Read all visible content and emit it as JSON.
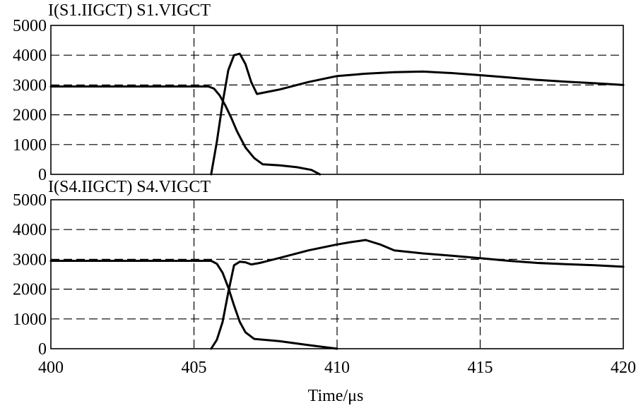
{
  "chart_data": [
    {
      "type": "line",
      "title": "I(S1.IIGCT)   S1.VIGCT",
      "xlim": [
        400,
        420
      ],
      "ylim": [
        0,
        5000
      ],
      "x_ticks": [
        400,
        405,
        410,
        415,
        420
      ],
      "y_ticks": [
        0,
        1000,
        2000,
        3000,
        4000,
        5000
      ],
      "grid": true,
      "series": [
        {
          "name": "I(S1.IIGCT)",
          "x": [
            400,
            405.5,
            405.7,
            405.9,
            406.1,
            406.3,
            406.5,
            406.8,
            407.1,
            407.4,
            408,
            408.6,
            409.1,
            409.4
          ],
          "y": [
            2950,
            2950,
            2880,
            2650,
            2300,
            1900,
            1450,
            900,
            550,
            340,
            300,
            240,
            150,
            0
          ]
        },
        {
          "name": "S1.VIGCT",
          "x": [
            405.6,
            405.8,
            406.0,
            406.2,
            406.4,
            406.6,
            406.8,
            407.0,
            407.2,
            408,
            409,
            410,
            411,
            412,
            413,
            414,
            415,
            416,
            417,
            418,
            419,
            420
          ],
          "y": [
            0,
            1100,
            2400,
            3500,
            4000,
            4050,
            3700,
            3100,
            2700,
            2850,
            3100,
            3300,
            3380,
            3430,
            3450,
            3400,
            3330,
            3250,
            3170,
            3110,
            3060,
            3000
          ]
        }
      ]
    },
    {
      "type": "line",
      "title": "I(S4.IIGCT)   S4.VIGCT",
      "xlabel": "Time/μs",
      "xlim": [
        400,
        420
      ],
      "ylim": [
        0,
        5000
      ],
      "x_ticks": [
        400,
        405,
        410,
        415,
        420
      ],
      "y_ticks": [
        0,
        1000,
        2000,
        3000,
        4000,
        5000
      ],
      "grid": true,
      "series": [
        {
          "name": "I(S4.IIGCT)",
          "x": [
            400,
            405.6,
            405.8,
            406.0,
            406.2,
            406.4,
            406.6,
            406.8,
            407.1,
            408,
            409,
            410
          ],
          "y": [
            2950,
            2950,
            2850,
            2550,
            2050,
            1450,
            900,
            550,
            330,
            250,
            120,
            0
          ]
        },
        {
          "name": "S4.VIGCT",
          "x": [
            405.6,
            405.8,
            406.0,
            406.2,
            406.4,
            406.6,
            406.8,
            407.0,
            407.3,
            408,
            409,
            410,
            410.5,
            411,
            411.5,
            412,
            413,
            414,
            415,
            416,
            417,
            418,
            419,
            420
          ],
          "y": [
            0,
            300,
            900,
            1900,
            2800,
            2920,
            2900,
            2830,
            2880,
            3050,
            3300,
            3500,
            3580,
            3650,
            3500,
            3300,
            3200,
            3120,
            3040,
            2950,
            2880,
            2840,
            2800,
            2750
          ]
        }
      ]
    }
  ]
}
